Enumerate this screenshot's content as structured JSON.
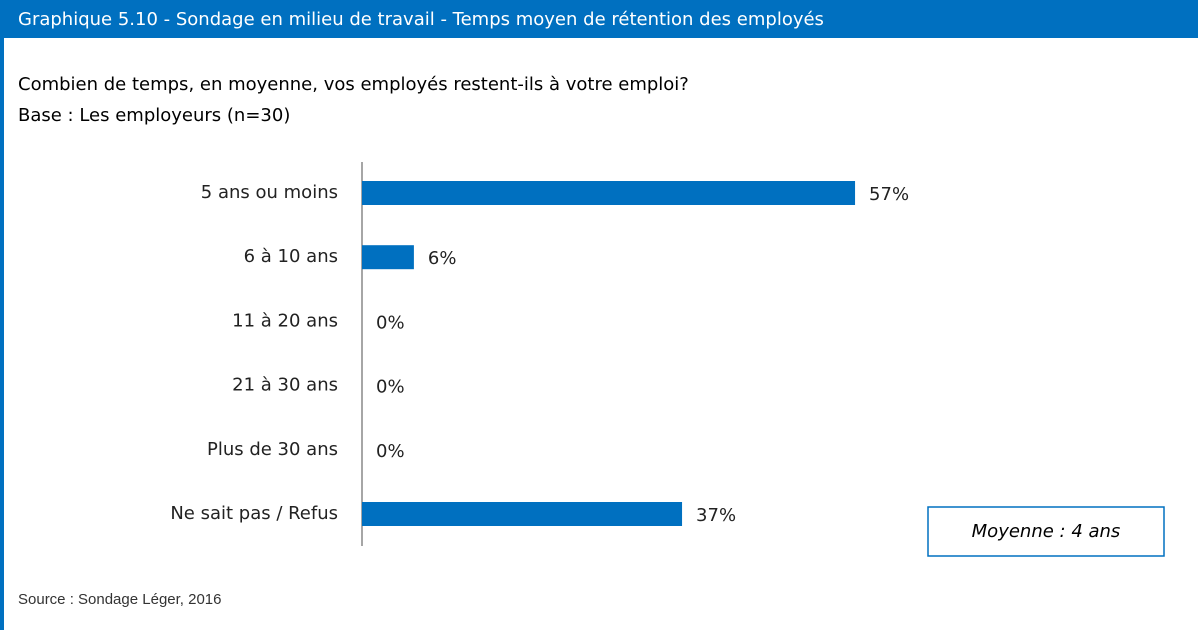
{
  "chart_data": {
    "type": "bar",
    "orientation": "horizontal",
    "title": "Graphique 5.10 - Sondage en milieu de travail - Temps moyen de rétention des employés",
    "subtitle": [
      "Combien de temps, en moyenne, vos employés restent-ils à votre emploi?",
      "Base : Les employeurs (n=30)"
    ],
    "categories": [
      "5 ans ou moins",
      "6 à 10 ans",
      "11 à 20 ans",
      "21 à 30 ans",
      "Plus de 30 ans",
      "Ne sait pas / Refus"
    ],
    "values": [
      57,
      6,
      0,
      0,
      0,
      37
    ],
    "value_labels": [
      "57%",
      "6%",
      "0%",
      "0%",
      "0%",
      "37%"
    ],
    "color": "#0070c0",
    "annotation": "Moyenne : 4 ans",
    "source": "Source : Sondage Léger, 2016"
  }
}
